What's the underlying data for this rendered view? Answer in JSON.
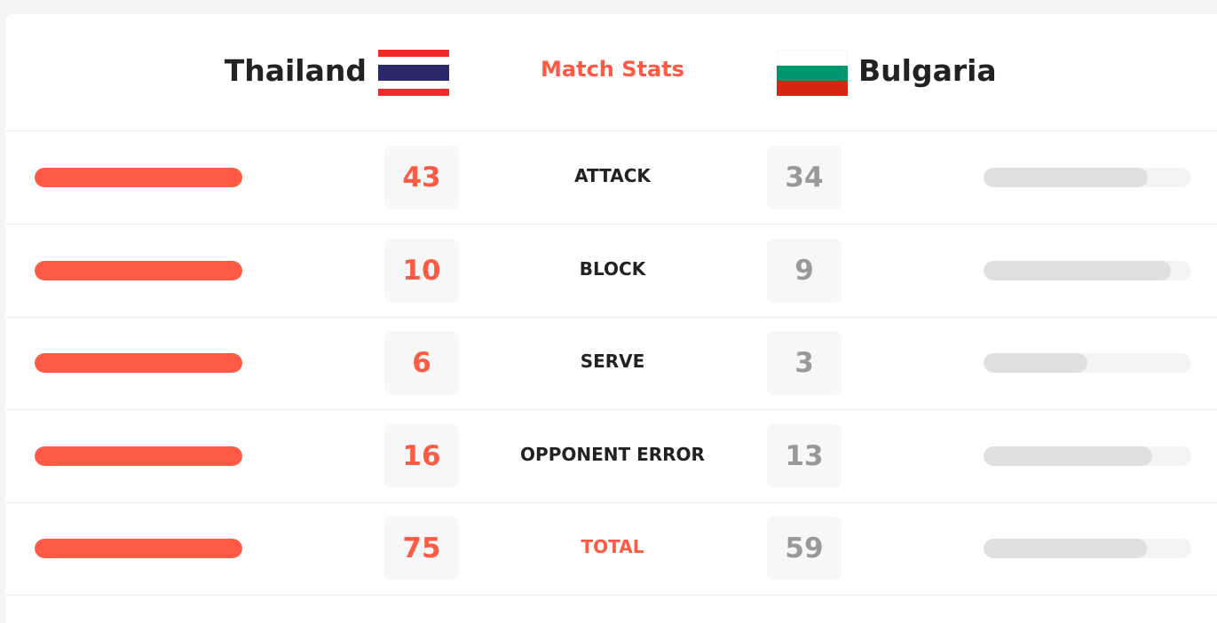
{
  "header": {
    "home_team": "Thailand",
    "title": "Match Stats",
    "away_team": "Bulgaria"
  },
  "rows": [
    {
      "label": "ATTACK",
      "home": 43,
      "away": 34
    },
    {
      "label": "BLOCK",
      "home": 10,
      "away": 9
    },
    {
      "label": "SERVE",
      "home": 6,
      "away": 3
    },
    {
      "label": "OPPONENT ERROR",
      "home": 16,
      "away": 13
    },
    {
      "label": "TOTAL",
      "home": 75,
      "away": 59
    }
  ]
}
